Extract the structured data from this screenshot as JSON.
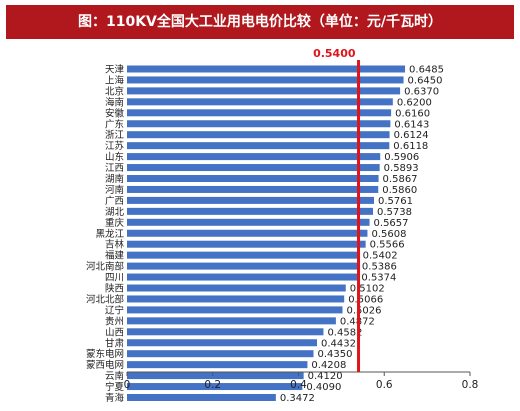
{
  "header": {
    "title": "图：110KV全国大工业用电电价比较（单位：元/千瓦时）"
  },
  "colors": {
    "banner": "#b0181e",
    "bar": "#4472c4",
    "reference_line": "#e0141a",
    "axis": "#555555"
  },
  "chart_data": {
    "type": "bar",
    "orientation": "horizontal",
    "title": "图：110KV全国大工业用电电价比较（单位：元/千瓦时）",
    "xlabel": "",
    "ylabel": "",
    "xlim": [
      0,
      0.8
    ],
    "x_ticks": [
      0,
      0.2,
      0.4,
      0.6,
      0.8
    ],
    "x_tick_labels": [
      "0",
      "0.2",
      "0.4",
      "0.6",
      "0.8"
    ],
    "grid": false,
    "legend": "none",
    "categories": [
      "天津",
      "上海",
      "北京",
      "海南",
      "安徽",
      "广东",
      "浙江",
      "江苏",
      "山东",
      "江西",
      "湖南",
      "河南",
      "广西",
      "湖北",
      "重庆",
      "黑龙江",
      "吉林",
      "福建",
      "河北南部",
      "四川",
      "陕西",
      "河北北部",
      "辽宁",
      "贵州",
      "山西",
      "甘肃",
      "蒙东电网",
      "蒙西电网",
      "云南",
      "宁夏",
      "青海"
    ],
    "values": [
      0.6485,
      0.645,
      0.637,
      0.62,
      0.616,
      0.6143,
      0.6124,
      0.6118,
      0.5906,
      0.5893,
      0.5867,
      0.586,
      0.5761,
      0.5738,
      0.5657,
      0.5608,
      0.5566,
      0.5402,
      0.5386,
      0.5374,
      0.5102,
      0.5066,
      0.5026,
      0.4872,
      0.4582,
      0.4432,
      0.435,
      0.4208,
      0.412,
      0.409,
      0.3472
    ],
    "value_labels": [
      "0.6485",
      "0.6450",
      "0.6370",
      "0.6200",
      "0.6160",
      "0.6143",
      "0.6124",
      "0.6118",
      "0.5906",
      "0.5893",
      "0.5867",
      "0.5860",
      "0.5761",
      "0.5738",
      "0.5657",
      "0.5608",
      "0.5566",
      "0.5402",
      "0.5386",
      "0.5374",
      "0.5102",
      "0.5066",
      "0.5026",
      "0.4872",
      "0.4582",
      "0.4432",
      "0.4350",
      "0.4208",
      "0.4120",
      "0.4090",
      "0.3472"
    ],
    "reference_line": {
      "value": 0.54,
      "label": "0.5400"
    }
  }
}
